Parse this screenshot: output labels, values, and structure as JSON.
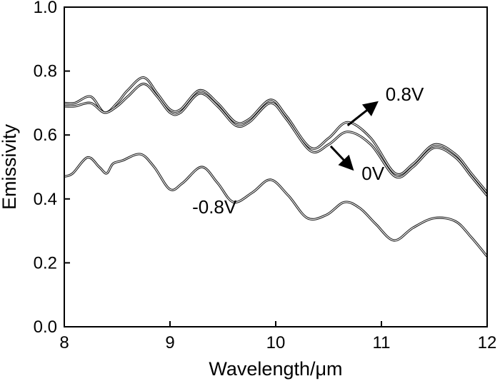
{
  "chart_data": {
    "type": "line",
    "title": "",
    "xlabel": "Wavelength/μm",
    "ylabel": "Emissivity",
    "xlim": [
      8,
      12
    ],
    "ylim": [
      0.0,
      1.0
    ],
    "xticks": [
      8,
      9,
      10,
      11,
      12
    ],
    "xtick_labels": [
      "8",
      "9",
      "10",
      "11",
      "12"
    ],
    "yticks": [
      0.0,
      0.2,
      0.4,
      0.6,
      0.8,
      1.0
    ],
    "ytick_labels": [
      "0.0",
      "0.2",
      "0.4",
      "0.6",
      "0.8",
      "1.0"
    ],
    "grid": false,
    "series": [
      {
        "name": "0.8V",
        "x": [
          8.0,
          8.1,
          8.25,
          8.38,
          8.5,
          8.6,
          8.75,
          8.88,
          9.0,
          9.1,
          9.28,
          9.45,
          9.62,
          9.75,
          9.95,
          10.1,
          10.33,
          10.5,
          10.68,
          10.9,
          11.13,
          11.3,
          11.5,
          11.7,
          11.85,
          12.0
        ],
        "y": [
          0.7,
          0.7,
          0.72,
          0.67,
          0.7,
          0.74,
          0.78,
          0.73,
          0.68,
          0.68,
          0.74,
          0.7,
          0.64,
          0.65,
          0.71,
          0.66,
          0.56,
          0.59,
          0.64,
          0.59,
          0.48,
          0.51,
          0.57,
          0.54,
          0.48,
          0.42
        ]
      },
      {
        "name": "0V",
        "x": [
          8.0,
          8.1,
          8.25,
          8.38,
          8.5,
          8.6,
          8.75,
          8.88,
          9.0,
          9.1,
          9.28,
          9.45,
          9.62,
          9.75,
          9.95,
          10.1,
          10.33,
          10.5,
          10.68,
          10.9,
          11.13,
          11.3,
          11.5,
          11.7,
          11.85,
          12.0
        ],
        "y": [
          0.69,
          0.69,
          0.7,
          0.67,
          0.69,
          0.72,
          0.76,
          0.72,
          0.67,
          0.67,
          0.73,
          0.69,
          0.63,
          0.64,
          0.7,
          0.65,
          0.55,
          0.57,
          0.61,
          0.57,
          0.47,
          0.5,
          0.56,
          0.53,
          0.47,
          0.41
        ]
      },
      {
        "name": "-0.8V",
        "x": [
          8.0,
          8.08,
          8.22,
          8.33,
          8.4,
          8.46,
          8.55,
          8.72,
          8.85,
          9.0,
          9.12,
          9.3,
          9.45,
          9.6,
          9.78,
          9.95,
          10.12,
          10.3,
          10.48,
          10.65,
          10.8,
          10.95,
          11.12,
          11.3,
          11.5,
          11.7,
          11.85,
          12.0
        ],
        "y": [
          0.47,
          0.48,
          0.53,
          0.5,
          0.48,
          0.51,
          0.52,
          0.54,
          0.5,
          0.43,
          0.45,
          0.5,
          0.45,
          0.39,
          0.42,
          0.46,
          0.41,
          0.34,
          0.35,
          0.39,
          0.37,
          0.32,
          0.27,
          0.31,
          0.34,
          0.33,
          0.28,
          0.22
        ]
      }
    ],
    "annotations": [
      {
        "text": "0.8V",
        "x": 11.22,
        "y": 0.708
      },
      {
        "text": "0V",
        "x": 10.92,
        "y": 0.46
      },
      {
        "text": "-0.8V",
        "x": 9.42,
        "y": 0.355
      }
    ],
    "arrows": [
      {
        "label": "0.8V",
        "from": [
          10.68,
          0.63
        ],
        "to": [
          10.95,
          0.7
        ]
      },
      {
        "label": "0V",
        "from": [
          10.52,
          0.565
        ],
        "to": [
          10.72,
          0.495
        ]
      }
    ]
  }
}
